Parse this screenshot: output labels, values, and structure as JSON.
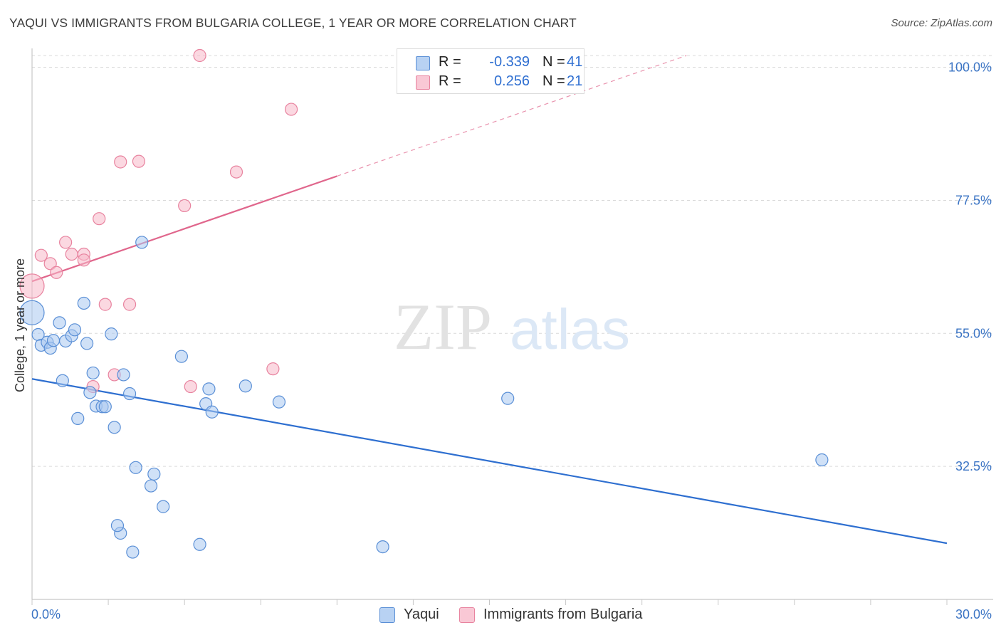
{
  "header": {
    "title": "YAQUI VS IMMIGRANTS FROM BULGARIA COLLEGE, 1 YEAR OR MORE CORRELATION CHART",
    "source": "Source: ZipAtlas.com"
  },
  "watermark": {
    "zip": "ZIP",
    "atlas": "atlas"
  },
  "legend": {
    "rows": [
      {
        "r_label": "R = ",
        "r_value": "-0.339",
        "n_label": "N = ",
        "n_value": "41"
      },
      {
        "r_label": "R = ",
        "r_value": "0.256",
        "n_label": "N = ",
        "n_value": "21"
      }
    ]
  },
  "bottom_legend": {
    "items": [
      "Yaqui",
      "Immigrants from Bulgaria"
    ]
  },
  "colors": {
    "yaqui_fill": "#a9c8f0",
    "yaqui_stroke": "#5a8fd6",
    "yaqui_line": "#2e6fd0",
    "bulgaria_fill": "#f7b8c8",
    "bulgaria_stroke": "#e8839f",
    "bulgaria_line": "#e0668c",
    "grid": "#d9d9d9",
    "tick_label": "#3b74c4"
  },
  "chart_data": {
    "type": "scatter",
    "title": "YAQUI VS IMMIGRANTS FROM BULGARIA COLLEGE, 1 YEAR OR MORE CORRELATION CHART",
    "xlabel": "",
    "ylabel": "College, 1 year or more",
    "xlim": [
      0,
      30
    ],
    "ylim": [
      10,
      102
    ],
    "x_tick_labels": [
      "0.0%",
      "30.0%"
    ],
    "y_ticks": [
      32.5,
      55.0,
      77.5,
      100.0
    ],
    "y_tick_labels": [
      "32.5%",
      "55.0%",
      "77.5%",
      "100.0%"
    ],
    "grid": true,
    "legend_position": "top-center",
    "series": [
      {
        "name": "Yaqui",
        "points": [
          {
            "x": 0.0,
            "y": 58.5,
            "size": "large"
          },
          {
            "x": 0.2,
            "y": 54.8
          },
          {
            "x": 0.3,
            "y": 53.0
          },
          {
            "x": 0.5,
            "y": 53.5
          },
          {
            "x": 0.6,
            "y": 52.5
          },
          {
            "x": 0.7,
            "y": 53.8
          },
          {
            "x": 0.9,
            "y": 56.8
          },
          {
            "x": 1.0,
            "y": 47.0
          },
          {
            "x": 1.1,
            "y": 53.7
          },
          {
            "x": 1.3,
            "y": 54.6
          },
          {
            "x": 1.4,
            "y": 55.6
          },
          {
            "x": 1.5,
            "y": 40.6
          },
          {
            "x": 1.7,
            "y": 60.1
          },
          {
            "x": 1.8,
            "y": 53.3
          },
          {
            "x": 1.9,
            "y": 45.0
          },
          {
            "x": 2.0,
            "y": 48.3
          },
          {
            "x": 2.1,
            "y": 42.7
          },
          {
            "x": 2.3,
            "y": 42.6
          },
          {
            "x": 2.4,
            "y": 42.6
          },
          {
            "x": 2.6,
            "y": 54.9
          },
          {
            "x": 2.7,
            "y": 39.1
          },
          {
            "x": 3.0,
            "y": 48.0
          },
          {
            "x": 3.2,
            "y": 44.8
          },
          {
            "x": 3.4,
            "y": 32.3
          },
          {
            "x": 3.6,
            "y": 70.4
          },
          {
            "x": 3.9,
            "y": 29.2
          },
          {
            "x": 4.0,
            "y": 31.2
          },
          {
            "x": 4.3,
            "y": 25.7
          },
          {
            "x": 3.3,
            "y": 18.0
          },
          {
            "x": 2.9,
            "y": 21.2
          },
          {
            "x": 2.8,
            "y": 22.5
          },
          {
            "x": 4.9,
            "y": 51.1
          },
          {
            "x": 5.5,
            "y": 19.3
          },
          {
            "x": 5.7,
            "y": 43.1
          },
          {
            "x": 5.8,
            "y": 45.6
          },
          {
            "x": 5.9,
            "y": 41.7
          },
          {
            "x": 7.0,
            "y": 46.1
          },
          {
            "x": 8.1,
            "y": 43.4
          },
          {
            "x": 11.5,
            "y": 18.9
          },
          {
            "x": 15.6,
            "y": 44.0
          },
          {
            "x": 25.9,
            "y": 33.6
          }
        ],
        "trend": {
          "x": [
            0,
            30
          ],
          "y": [
            47.3,
            19.5
          ]
        }
      },
      {
        "name": "Immigrants from Bulgaria",
        "points": [
          {
            "x": 0.0,
            "y": 63.0,
            "size": "large"
          },
          {
            "x": 0.3,
            "y": 68.2
          },
          {
            "x": 0.6,
            "y": 66.8
          },
          {
            "x": 0.8,
            "y": 65.3
          },
          {
            "x": 1.1,
            "y": 70.4
          },
          {
            "x": 1.3,
            "y": 68.4
          },
          {
            "x": 1.7,
            "y": 68.4
          },
          {
            "x": 1.7,
            "y": 67.4
          },
          {
            "x": 2.0,
            "y": 46.0
          },
          {
            "x": 2.2,
            "y": 74.4
          },
          {
            "x": 2.4,
            "y": 59.9
          },
          {
            "x": 2.7,
            "y": 48.0
          },
          {
            "x": 2.9,
            "y": 84.0
          },
          {
            "x": 3.2,
            "y": 59.9
          },
          {
            "x": 3.5,
            "y": 84.1
          },
          {
            "x": 5.0,
            "y": 76.6
          },
          {
            "x": 5.2,
            "y": 46.0
          },
          {
            "x": 5.5,
            "y": 102.0
          },
          {
            "x": 6.7,
            "y": 82.3
          },
          {
            "x": 7.9,
            "y": 49.0
          },
          {
            "x": 8.5,
            "y": 92.9
          }
        ],
        "trend": {
          "x": [
            0,
            30
          ],
          "y": [
            63.8,
            117.2
          ],
          "solid_until_x": 10.0
        }
      }
    ]
  }
}
